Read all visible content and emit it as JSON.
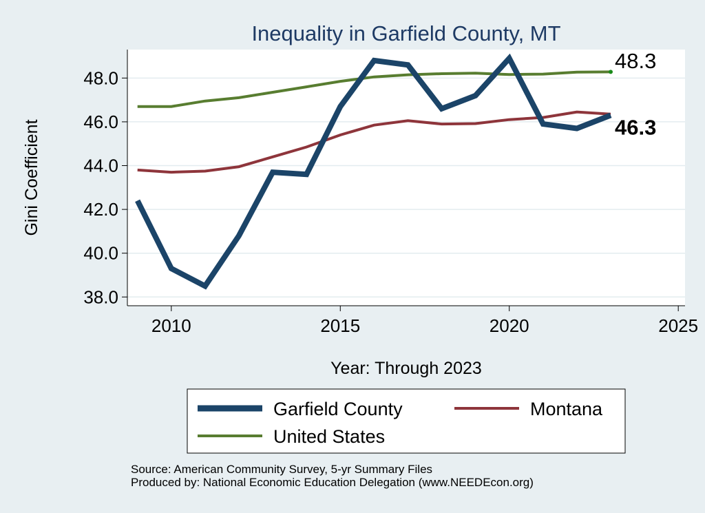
{
  "chart_data": {
    "type": "line",
    "title": "Inequality in Garfield County, MT",
    "xlabel": "Year: Through 2023",
    "ylabel": "Gini Coefficient",
    "xlim": [
      2008.7,
      2025.2
    ],
    "ylim": [
      37.6,
      49.3
    ],
    "xticks": [
      2010,
      2015,
      2020,
      2025
    ],
    "yticks": [
      38.0,
      40.0,
      42.0,
      44.0,
      46.0,
      48.0
    ],
    "ytick_labels": [
      "38.0",
      "40.0",
      "42.0",
      "44.0",
      "46.0",
      "48.0"
    ],
    "grid": true,
    "legend_position": "bottom",
    "x": [
      2009,
      2010,
      2011,
      2012,
      2013,
      2014,
      2015,
      2016,
      2017,
      2018,
      2019,
      2020,
      2021,
      2022,
      2023
    ],
    "series": [
      {
        "name": "Garfield County",
        "color": "#1b4468",
        "values": [
          42.4,
          39.3,
          38.5,
          40.8,
          43.7,
          43.6,
          46.7,
          48.8,
          48.6,
          46.6,
          47.2,
          48.9,
          45.9,
          45.7,
          46.3
        ]
      },
      {
        "name": "Montana",
        "color": "#8e353b",
        "values": [
          43.8,
          43.7,
          43.75,
          43.95,
          44.4,
          44.85,
          45.4,
          45.85,
          46.05,
          45.9,
          45.92,
          46.1,
          46.2,
          46.45,
          46.35
        ]
      },
      {
        "name": "United States",
        "color": "#587d30",
        "values": [
          46.7,
          46.7,
          46.95,
          47.1,
          47.35,
          47.6,
          47.85,
          48.05,
          48.15,
          48.2,
          48.22,
          48.16,
          48.18,
          48.27,
          48.28
        ]
      }
    ],
    "annotations": [
      {
        "text": "48.3",
        "series": "United States",
        "x": 2023,
        "y": 48.3
      },
      {
        "text": "46.3",
        "series": "Garfield County",
        "x": 2023,
        "y": 46.3
      }
    ]
  },
  "notes": {
    "source": "Source: American Community Survey, 5-yr Summary Files",
    "producer": "Produced by: National Economic Education Delegation (www.NEEDEcon.org)"
  }
}
